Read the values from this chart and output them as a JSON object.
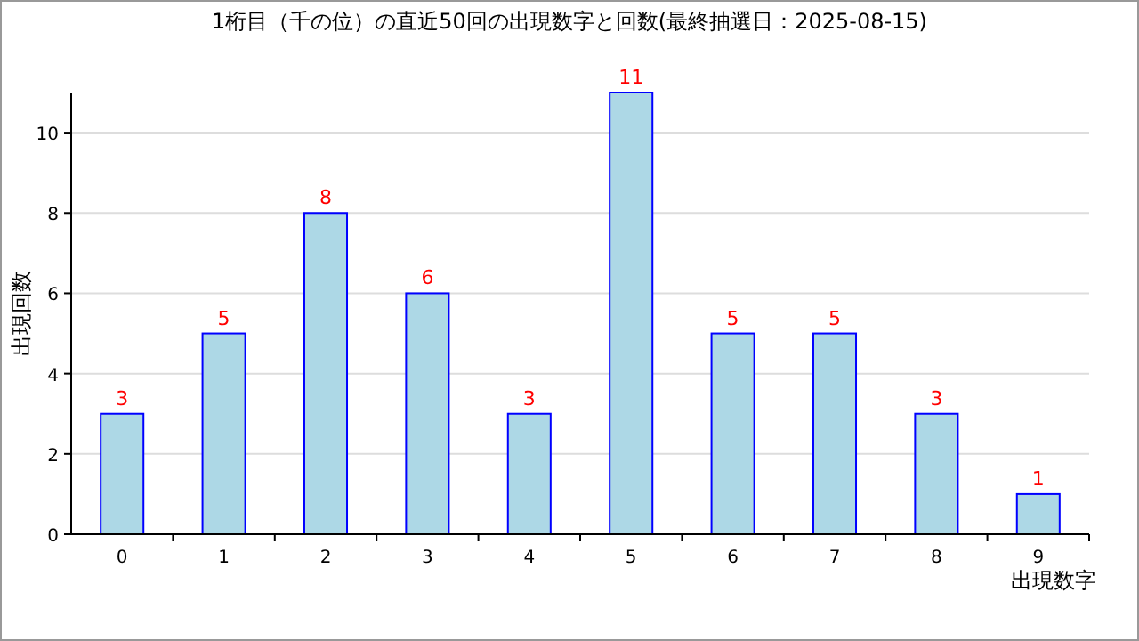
{
  "chart_data": {
    "type": "bar",
    "title": "1桁目（千の位）の直近50回の出現数字と回数(最終抽選日：2025-08-15)",
    "xlabel": "出現数字",
    "ylabel": "出現回数",
    "categories": [
      "0",
      "1",
      "2",
      "3",
      "4",
      "5",
      "6",
      "7",
      "8",
      "9"
    ],
    "values": [
      3,
      5,
      8,
      6,
      3,
      11,
      5,
      5,
      3,
      1
    ],
    "color": "#add8e6",
    "ylim": [
      0,
      11
    ],
    "yticks": [
      0,
      2,
      4,
      6,
      8,
      10
    ],
    "grid": "y",
    "data_labels": true
  }
}
